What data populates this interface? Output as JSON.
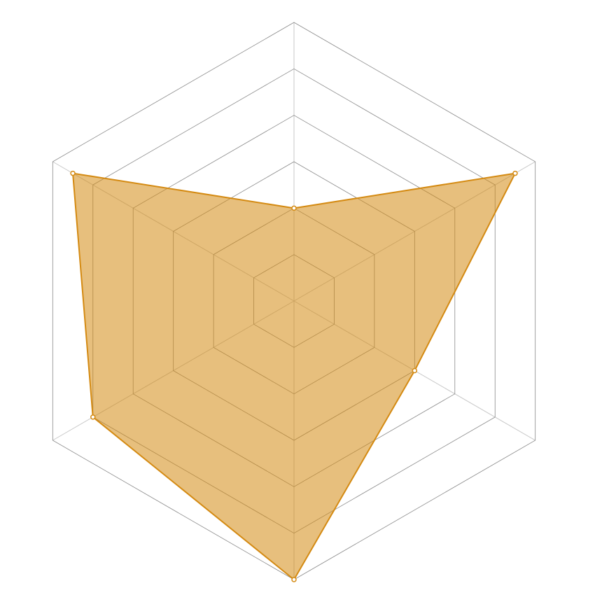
{
  "chart_data": {
    "type": "radar",
    "values": [
      2,
      5.5,
      3,
      6,
      5,
      5.5
    ],
    "color": "#d48a12",
    "ylim": [
      0,
      6
    ],
    "yticks": [
      1,
      2,
      3,
      4,
      5,
      6
    ],
    "grid": true
  }
}
